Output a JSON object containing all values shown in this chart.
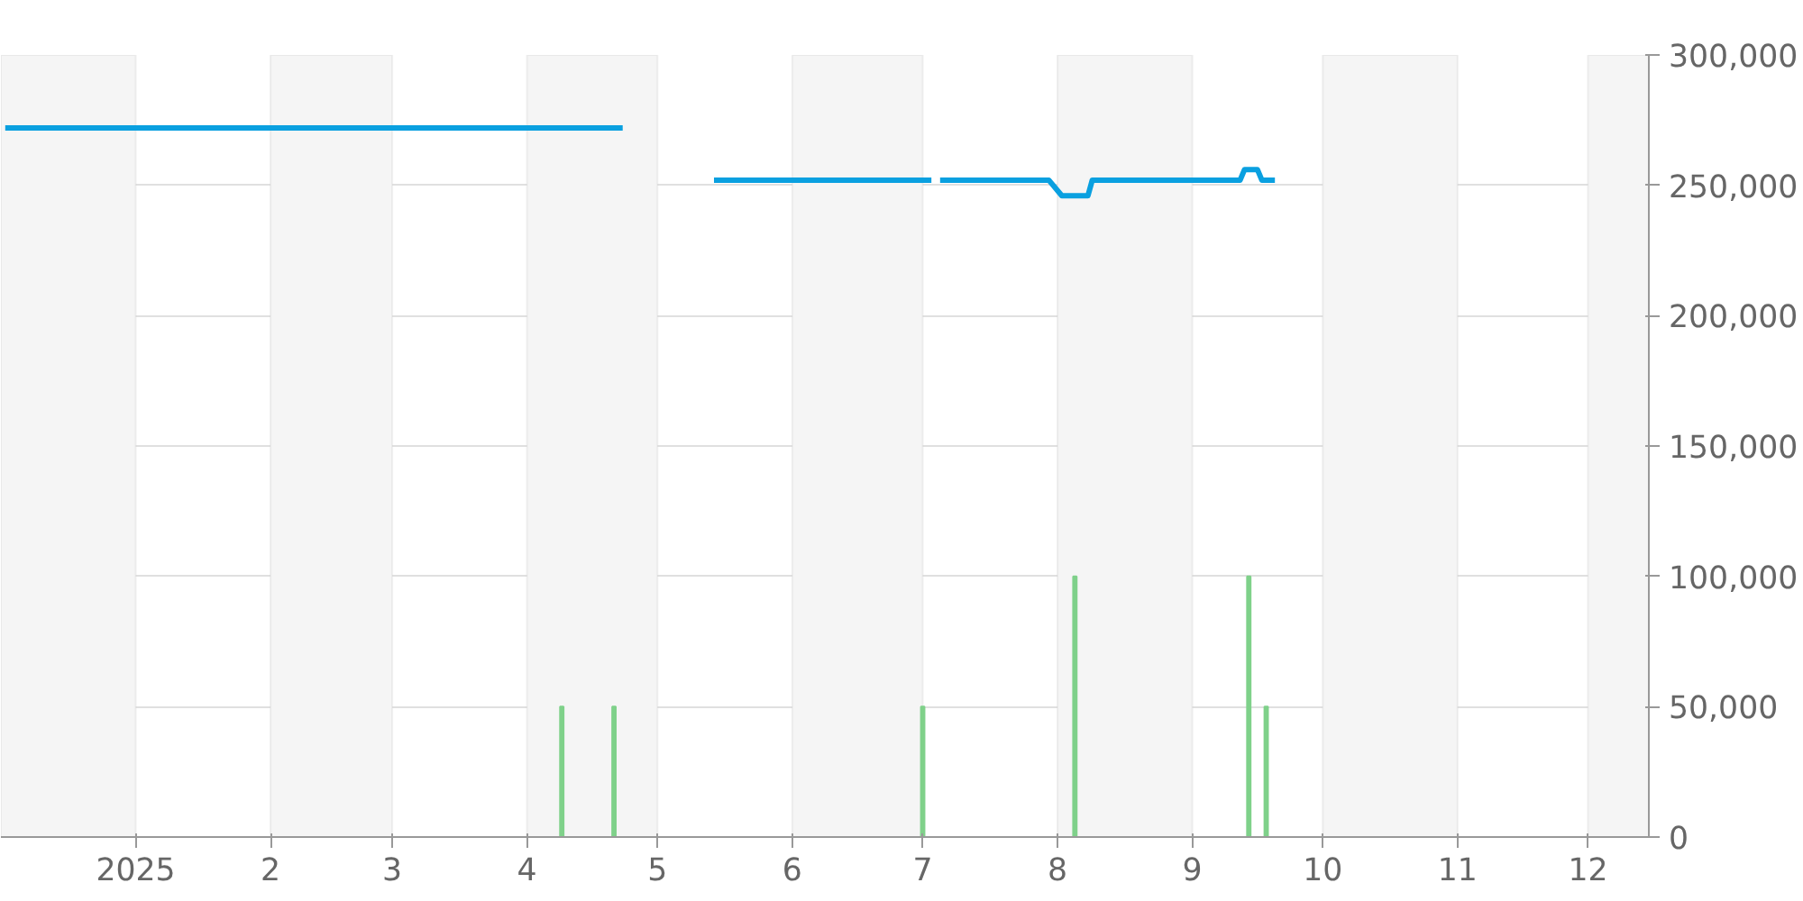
{
  "chart_data": {
    "type": "line",
    "xlim": [
      "2024-12-01",
      "2025-12-15"
    ],
    "xticks": [
      {
        "value": "2025-01-01",
        "label": "2025"
      },
      {
        "value": "2025-02-01",
        "label": "2"
      },
      {
        "value": "2025-03-01",
        "label": "3"
      },
      {
        "value": "2025-04-01",
        "label": "4"
      },
      {
        "value": "2025-05-01",
        "label": "5"
      },
      {
        "value": "2025-06-01",
        "label": "6"
      },
      {
        "value": "2025-07-01",
        "label": "7"
      },
      {
        "value": "2025-08-01",
        "label": "8"
      },
      {
        "value": "2025-09-01",
        "label": "9"
      },
      {
        "value": "2025-10-01",
        "label": "10"
      },
      {
        "value": "2025-11-01",
        "label": "11"
      },
      {
        "value": "2025-12-01",
        "label": "12"
      }
    ],
    "ylim": [
      0,
      300000
    ],
    "yticks": [
      {
        "value": 0,
        "label": "0"
      },
      {
        "value": 50000,
        "label": "50,000"
      },
      {
        "value": 100000,
        "label": "100,000"
      },
      {
        "value": 150000,
        "label": "150,000"
      },
      {
        "value": 200000,
        "label": "200,000"
      },
      {
        "value": 250000,
        "label": "250,000"
      },
      {
        "value": 300000,
        "label": "300,000"
      }
    ],
    "grid": "y",
    "bands": [
      {
        "axis": "x",
        "from": "2024-12-01",
        "to": "2025-01-01",
        "color": "#f5f5f5"
      },
      {
        "axis": "x",
        "from": "2025-02-01",
        "to": "2025-03-01",
        "color": "#f5f5f5"
      },
      {
        "axis": "x",
        "from": "2025-04-01",
        "to": "2025-05-01",
        "color": "#f5f5f5"
      },
      {
        "axis": "x",
        "from": "2025-06-01",
        "to": "2025-07-01",
        "color": "#f5f5f5"
      },
      {
        "axis": "x",
        "from": "2025-08-01",
        "to": "2025-09-01",
        "color": "#f5f5f5"
      },
      {
        "axis": "x",
        "from": "2025-10-01",
        "to": "2025-11-01",
        "color": "#f5f5f5"
      },
      {
        "axis": "x",
        "from": "2025-12-01",
        "to": "2025-12-15",
        "color": "#f5f5f5"
      }
    ],
    "series": [
      {
        "type": "bar",
        "color": "#7fd18a",
        "x": [
          "2025-04-09",
          "2025-04-21",
          "2025-07-01",
          "2025-08-05",
          "2025-09-14",
          "2025-09-18"
        ],
        "values": [
          50000,
          50000,
          50000,
          100000,
          100000,
          50000
        ]
      },
      {
        "color": "#0aa0e0",
        "x": [
          "2024-12-02",
          "2025-04-23",
          "2025-05-01",
          "2025-05-14",
          "2025-07-03",
          "2025-07-04",
          "2025-07-05",
          "2025-07-30",
          "2025-08-02",
          "2025-08-08",
          "2025-08-09",
          "2025-09-12",
          "2025-09-13",
          "2025-09-16",
          "2025-09-17",
          "2025-09-20"
        ],
        "values": [
          272000,
          272000,
          null,
          252000,
          252000,
          null,
          252000,
          252000,
          246000,
          246000,
          252000,
          252000,
          256000,
          256000,
          252000,
          252000
        ]
      }
    ]
  }
}
